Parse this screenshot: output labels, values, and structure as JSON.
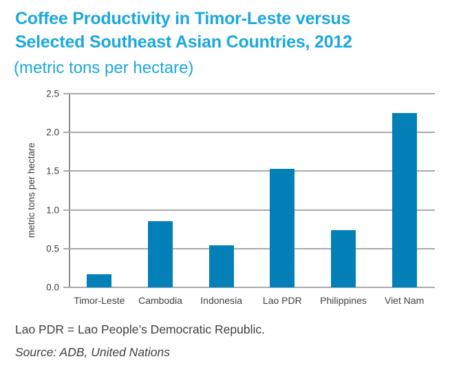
{
  "title": {
    "line1": "Coffee Productivity in Timor-Leste versus",
    "line2": "Selected Southeast Asian Countries, 2012",
    "subtitle": "(metric tons per hectare)"
  },
  "footer": {
    "note": "Lao PDR = Lao People’s Democratic Republic.",
    "source": "Source: ADB, United Nations"
  },
  "colors": {
    "title": "#1CA8DC",
    "bar": "#0380B8",
    "gridline": "#A9A9A9",
    "axis": "#8C8C8C",
    "text": "#404040"
  },
  "chart_data": {
    "type": "bar",
    "title": "Coffee Productivity in Timor-Leste versus Selected Southeast Asian Countries, 2012",
    "subtitle": "(metric tons per hectare)",
    "categories": [
      "Timor-Leste",
      "Cambodia",
      "Indonesia",
      "Lao PDR",
      "Philippines",
      "Viet Nam"
    ],
    "values": [
      0.17,
      0.85,
      0.54,
      1.53,
      0.74,
      2.25
    ],
    "xlabel": "",
    "ylabel": "metric tons per hectare",
    "ylim": [
      0,
      2.5
    ],
    "ytick_step": 0.5,
    "yticks": [
      "0.0",
      "0.5",
      "1.0",
      "1.5",
      "2.0",
      "2.5"
    ],
    "grid": true,
    "legend": false
  }
}
